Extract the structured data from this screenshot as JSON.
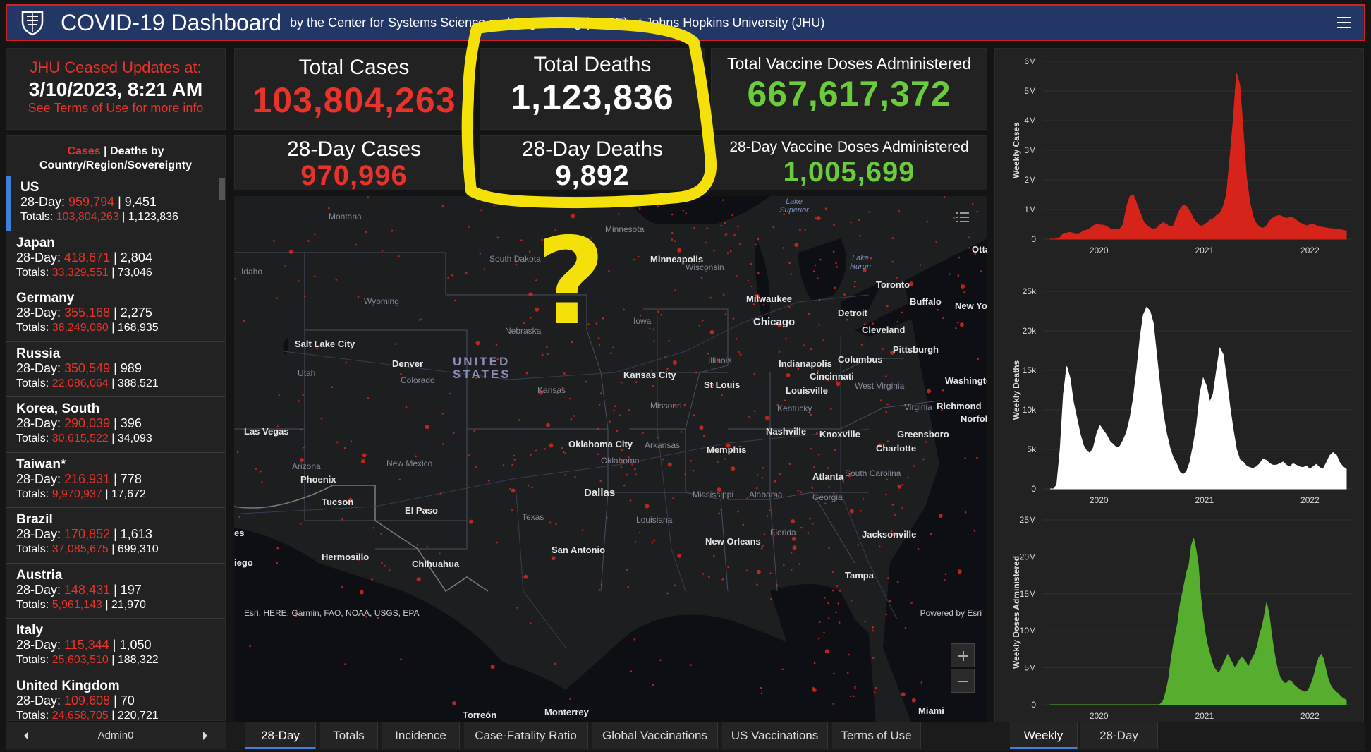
{
  "header": {
    "title": "COVID-19 Dashboard",
    "subtitle": "by the Center for Systems Science and Engineering (CSSE) at Johns Hopkins University (JHU)"
  },
  "notice": {
    "line1": "JHU Ceased Updates at:",
    "line2": "3/10/2023, 8:21 AM",
    "line3": "See Terms of Use for more info"
  },
  "kpis": {
    "total_cases_label": "Total Cases",
    "total_cases": "103,804,263",
    "total_deaths_label": "Total Deaths",
    "total_deaths": "1,123,836",
    "total_vaccine_label": "Total Vaccine Doses Administered",
    "total_vaccine": "667,617,372",
    "cases28_label": "28-Day Cases",
    "cases28": "970,996",
    "deaths28_label": "28-Day Deaths",
    "deaths28": "9,892",
    "vaccine28_label": "28-Day Vaccine Doses Administered",
    "vaccine28": "1,005,699"
  },
  "list": {
    "head_cases": "Cases",
    "head_sep": " | ",
    "head_rest": "Deaths by",
    "head_line2": "Country/Region/Sovereignty",
    "day_label": "28-Day: ",
    "totals_label": "Totals: ",
    "sep": " | ",
    "items": [
      {
        "country": "US",
        "cases28": "959,794",
        "deaths28": "9,451",
        "cases": "103,804,263",
        "deaths": "1,123,836"
      },
      {
        "country": "Japan",
        "cases28": "418,671",
        "deaths28": "2,804",
        "cases": "33,329,551",
        "deaths": "73,046"
      },
      {
        "country": "Germany",
        "cases28": "355,168",
        "deaths28": "2,275",
        "cases": "38,249,060",
        "deaths": "168,935"
      },
      {
        "country": "Russia",
        "cases28": "350,549",
        "deaths28": "989",
        "cases": "22,086,064",
        "deaths": "388,521"
      },
      {
        "country": "Korea, South",
        "cases28": "290,039",
        "deaths28": "396",
        "cases": "30,615,522",
        "deaths": "34,093"
      },
      {
        "country": "Taiwan*",
        "cases28": "216,931",
        "deaths28": "778",
        "cases": "9,970,937",
        "deaths": "17,672"
      },
      {
        "country": "Brazil",
        "cases28": "170,852",
        "deaths28": "1,613",
        "cases": "37,085,675",
        "deaths": "699,310"
      },
      {
        "country": "Austria",
        "cases28": "148,431",
        "deaths28": "197",
        "cases": "5,961,143",
        "deaths": "21,970"
      },
      {
        "country": "Italy",
        "cases28": "115,344",
        "deaths28": "1,050",
        "cases": "25,603,510",
        "deaths": "188,322"
      },
      {
        "country": "United Kingdom",
        "cases28": "109,608",
        "deaths28": "70",
        "cases": "24,658,705",
        "deaths": "220,721"
      }
    ],
    "pager": "Admin0"
  },
  "map": {
    "attribution": "Esri, HERE, Garmin, FAO, NOAA, USGS, EPA",
    "powered": "Powered by Esri",
    "country_label_1": "UNITED",
    "country_label_2": "STATES",
    "cities": [
      "Minneapolis",
      "Milwaukee",
      "Chicago",
      "Detroit",
      "Toronto",
      "Buffalo",
      "Cleveland",
      "Pittsburgh",
      "Denver",
      "Salt Lake City",
      "Kansas City",
      "St Louis",
      "Indianapolis",
      "Columbus",
      "Cincinnati",
      "Louisville",
      "Nashville",
      "Knoxville",
      "Charlotte",
      "Greensboro",
      "Richmond",
      "Norfolk",
      "Washington",
      "Oklahoma City",
      "Memphis",
      "Atlanta",
      "Dallas",
      "San Antonio",
      "New Orleans",
      "Jacksonville",
      "Tampa",
      "Phoenix",
      "Tucson",
      "El Paso",
      "Las Vegas",
      "Hermosillo",
      "Chihuahua",
      "Ottawa",
      "New York"
    ],
    "states": [
      "Montana",
      "Idaho",
      "Wyoming",
      "South Dakota",
      "Nebraska",
      "Iowa",
      "Wisconsin",
      "Illinois",
      "Kansas",
      "Missouri",
      "Colorado",
      "Utah",
      "Arizona",
      "New Mexico",
      "Texas",
      "Oklahoma",
      "Arkansas",
      "Louisiana",
      "Mississippi",
      "Alabama",
      "Georgia",
      "Florida",
      "Kentucky",
      "West Virginia",
      "Virginia",
      "South Carolina",
      "Minnesota"
    ],
    "lakes": [
      "Lake Superior",
      "Lake Huron"
    ],
    "left_edge_1": "es",
    "left_edge_2": "iego",
    "bottom_label_1": "Torreón",
    "bottom_label_2": "Monterrey",
    "bottom_label_3": "Miami"
  },
  "charts": [
    {
      "type": "area",
      "title": "",
      "ylabel": "Weekly Cases",
      "color": "#d7241b",
      "yticks": [
        "0",
        "1M",
        "2M",
        "3M",
        "4M",
        "5M",
        "6M"
      ],
      "xticks": [
        "2020",
        "2021",
        "2022"
      ],
      "ylim": [
        0,
        6000000
      ],
      "x_range": [
        "2020-01",
        "2023-03"
      ],
      "series": [
        {
          "values": [
            0,
            0,
            10000,
            60000,
            200000,
            210000,
            230000,
            200000,
            180000,
            200000,
            280000,
            300000,
            360000,
            450000,
            500000,
            480000,
            470000,
            430000,
            360000,
            330000,
            320000,
            350000,
            500000,
            1100000,
            1450000,
            1500000,
            1200000,
            900000,
            620000,
            460000,
            380000,
            340000,
            370000,
            480000,
            560000,
            500000,
            420000,
            450000,
            720000,
            1000000,
            1150000,
            1100000,
            950000,
            700000,
            560000,
            440000,
            460000,
            540000,
            640000,
            690000,
            800000,
            870000,
            1100000,
            1500000,
            2700000,
            4000000,
            5600000,
            5200000,
            3700000,
            2100000,
            1250000,
            750000,
            520000,
            400000,
            370000,
            450000,
            620000,
            720000,
            780000,
            800000,
            750000,
            700000,
            740000,
            720000,
            640000,
            560000,
            500000,
            450000,
            480000,
            500000,
            460000,
            420000,
            400000,
            380000,
            360000,
            350000,
            340000,
            330000,
            300000,
            280000
          ]
        }
      ]
    },
    {
      "type": "area",
      "title": "",
      "ylabel": "Weekly Deaths",
      "color": "#ffffff",
      "yticks": [
        "0",
        "5k",
        "10k",
        "15k",
        "20k",
        "25k"
      ],
      "xticks": [
        "2020",
        "2021",
        "2022"
      ],
      "ylim": [
        0,
        25000
      ],
      "x_range": [
        "2020-01",
        "2023-03"
      ],
      "series": [
        {
          "values": [
            0,
            0,
            500,
            5000,
            12000,
            15500,
            14000,
            11000,
            9000,
            7000,
            5500,
            4800,
            4500,
            5200,
            7000,
            8000,
            7400,
            6800,
            6000,
            5600,
            5200,
            5400,
            6200,
            7200,
            9000,
            11500,
            15000,
            19000,
            22000,
            23000,
            22500,
            21000,
            17000,
            13000,
            9500,
            7000,
            5200,
            3900,
            3200,
            2100,
            1800,
            2200,
            3400,
            5500,
            8000,
            12000,
            14000,
            13000,
            11000,
            12000,
            15000,
            17800,
            17000,
            14000,
            10500,
            7500,
            5000,
            3700,
            3400,
            2900,
            2700,
            2600,
            2800,
            3200,
            3800,
            3600,
            3200,
            3000,
            3000,
            3200,
            3400,
            3000,
            2800,
            3200,
            3000,
            2800,
            2700,
            2900,
            2500,
            2800,
            3100,
            2700,
            2500,
            3300,
            4200,
            4600,
            4300,
            3300,
            2800,
            2500
          ]
        }
      ]
    },
    {
      "type": "area",
      "title": "",
      "ylabel": "Weekly Doses Administered",
      "color": "#57ad2e",
      "yticks": [
        "0",
        "5M",
        "10M",
        "15M",
        "20M",
        "25M"
      ],
      "xticks": [
        "2020",
        "2021",
        "2022"
      ],
      "ylim": [
        0,
        25000000
      ],
      "x_range": [
        "2020-01",
        "2023-03"
      ],
      "series": [
        {
          "values": [
            0,
            0,
            0,
            0,
            0,
            0,
            0,
            0,
            0,
            0,
            0,
            0,
            0,
            0,
            0,
            0,
            0,
            0,
            0,
            0,
            0,
            0,
            0,
            0,
            0,
            0,
            0,
            0,
            0,
            0,
            0,
            0,
            0,
            0,
            0,
            0,
            0,
            0,
            0,
            0,
            0,
            0,
            0,
            0,
            0,
            0,
            0,
            0,
            0,
            300000,
            800000,
            2000000,
            3500000,
            5800000,
            8000000,
            9500000,
            11000000,
            13500000,
            15000000,
            16500000,
            18000000,
            19000000,
            21500000,
            22500000,
            21000000,
            19000000,
            15000000,
            12000000,
            9800000,
            8200000,
            7000000,
            5800000,
            5000000,
            4600000,
            4300000,
            4800000,
            5500000,
            6200000,
            6800000,
            6200000,
            5600000,
            5000000,
            5400000,
            6000000,
            6400000,
            6200000,
            5700000,
            5100000,
            5800000,
            6400000,
            7000000,
            8000000,
            9500000,
            10500000,
            12000000,
            13800000,
            12500000,
            10000000,
            7800000,
            6000000,
            4500000,
            3700000,
            3200000,
            2900000,
            3000000,
            3300000,
            3100000,
            2700000,
            2400000,
            2200000,
            2000000,
            1800000,
            1700000,
            1900000,
            2400000,
            3200000,
            4200000,
            5500000,
            6400000,
            6800000,
            6200000,
            4800000,
            3500000,
            2700000,
            2200000,
            1900000,
            1600000,
            1300000,
            1000000,
            800000,
            600000
          ]
        }
      ]
    }
  ],
  "tabs": [
    "28-Day",
    "Totals",
    "Incidence",
    "Case-Fatality Ratio",
    "Global Vaccinations",
    "US Vaccinations",
    "Terms of Use"
  ],
  "chart_tabs": [
    "Weekly",
    "28-Day"
  ],
  "annotation": {
    "question_mark": "?"
  },
  "colors": {
    "header_bg": "#223766",
    "accent_red": "#e8332a",
    "accent_green": "#6acb3b",
    "accent_blue": "#3f7fdc",
    "annotation_yellow": "#f5e10a"
  }
}
